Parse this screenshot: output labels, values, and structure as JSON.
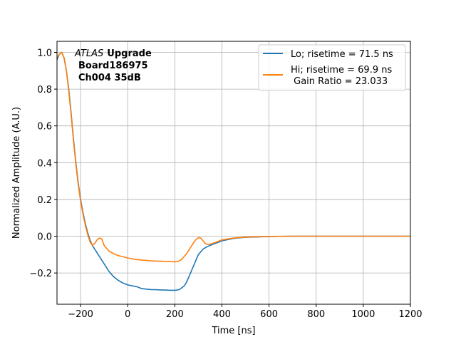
{
  "chart_data": {
    "type": "line",
    "xlabel": "Time [ns]",
    "ylabel": "Normalized Amplitude (A.U.)",
    "xlim": [
      -300,
      1200
    ],
    "ylim": [
      -0.37,
      1.06
    ],
    "xticks": [
      -200,
      0,
      200,
      400,
      600,
      800,
      1000,
      1200
    ],
    "xtick_labels": [
      "−200",
      "0",
      "200",
      "400",
      "600",
      "800",
      "1000",
      "1200"
    ],
    "yticks": [
      -0.2,
      0.0,
      0.2,
      0.4,
      0.6,
      0.8,
      1.0
    ],
    "ytick_labels": [
      "−0.2",
      "0.0",
      "0.2",
      "0.4",
      "0.6",
      "0.8",
      "1.0"
    ],
    "grid": true,
    "legend_position": "top-right",
    "annotation": {
      "italic": "ATLAS",
      "bold": "Upgrade",
      "line2": "Board186975",
      "line3": "Ch004 35dB"
    },
    "series": [
      {
        "name": "Lo; risetime = 71.5 ns",
        "color": "#1f77b4",
        "x": [
          -300,
          -290,
          -280,
          -270,
          -260,
          -250,
          -240,
          -230,
          -220,
          -210,
          -200,
          -190,
          -180,
          -170,
          -160,
          -150,
          -140,
          -130,
          -120,
          -110,
          -100,
          -80,
          -60,
          -40,
          -20,
          0,
          20,
          40,
          60,
          80,
          100,
          120,
          140,
          160,
          180,
          200,
          210,
          220,
          230,
          240,
          250,
          260,
          270,
          280,
          290,
          300,
          320,
          340,
          360,
          380,
          400,
          450,
          500,
          550,
          600,
          700,
          800,
          900,
          1000,
          1100,
          1200
        ],
        "y": [
          0.96,
          0.99,
          1.0,
          0.97,
          0.9,
          0.8,
          0.67,
          0.53,
          0.4,
          0.29,
          0.2,
          0.13,
          0.07,
          0.02,
          -0.02,
          -0.05,
          -0.07,
          -0.09,
          -0.11,
          -0.13,
          -0.15,
          -0.19,
          -0.22,
          -0.24,
          -0.255,
          -0.265,
          -0.27,
          -0.275,
          -0.285,
          -0.288,
          -0.29,
          -0.291,
          -0.292,
          -0.293,
          -0.294,
          -0.294,
          -0.293,
          -0.29,
          -0.28,
          -0.27,
          -0.25,
          -0.22,
          -0.19,
          -0.16,
          -0.13,
          -0.1,
          -0.07,
          -0.055,
          -0.045,
          -0.035,
          -0.025,
          -0.012,
          -0.006,
          -0.004,
          -0.002,
          0.0,
          0.0,
          0.0,
          0.0,
          0.0,
          0.0
        ]
      },
      {
        "name": "Hi; risetime = 69.9 ns\n Gain Ratio = 23.033",
        "color": "#ff7f0e",
        "x": [
          -300,
          -290,
          -280,
          -270,
          -260,
          -250,
          -240,
          -230,
          -220,
          -210,
          -200,
          -190,
          -180,
          -170,
          -160,
          -150,
          -140,
          -130,
          -120,
          -110,
          -100,
          -80,
          -60,
          -40,
          -20,
          0,
          20,
          40,
          60,
          80,
          100,
          120,
          140,
          160,
          180,
          200,
          210,
          220,
          230,
          240,
          250,
          260,
          270,
          280,
          290,
          300,
          310,
          320,
          330,
          340,
          360,
          380,
          400,
          450,
          500,
          550,
          600,
          700,
          800,
          900,
          1000,
          1100,
          1200
        ],
        "y": [
          0.97,
          0.99,
          1.0,
          0.97,
          0.9,
          0.79,
          0.66,
          0.52,
          0.39,
          0.28,
          0.19,
          0.12,
          0.06,
          0.01,
          -0.03,
          -0.05,
          -0.04,
          -0.02,
          -0.01,
          -0.015,
          -0.05,
          -0.08,
          -0.095,
          -0.105,
          -0.112,
          -0.118,
          -0.123,
          -0.127,
          -0.13,
          -0.132,
          -0.134,
          -0.135,
          -0.136,
          -0.137,
          -0.138,
          -0.139,
          -0.138,
          -0.134,
          -0.125,
          -0.11,
          -0.095,
          -0.075,
          -0.055,
          -0.035,
          -0.018,
          -0.008,
          -0.01,
          -0.025,
          -0.04,
          -0.045,
          -0.04,
          -0.03,
          -0.02,
          -0.01,
          -0.005,
          -0.003,
          -0.001,
          0.0,
          0.0,
          0.0,
          0.0,
          0.0,
          0.0
        ]
      }
    ]
  }
}
